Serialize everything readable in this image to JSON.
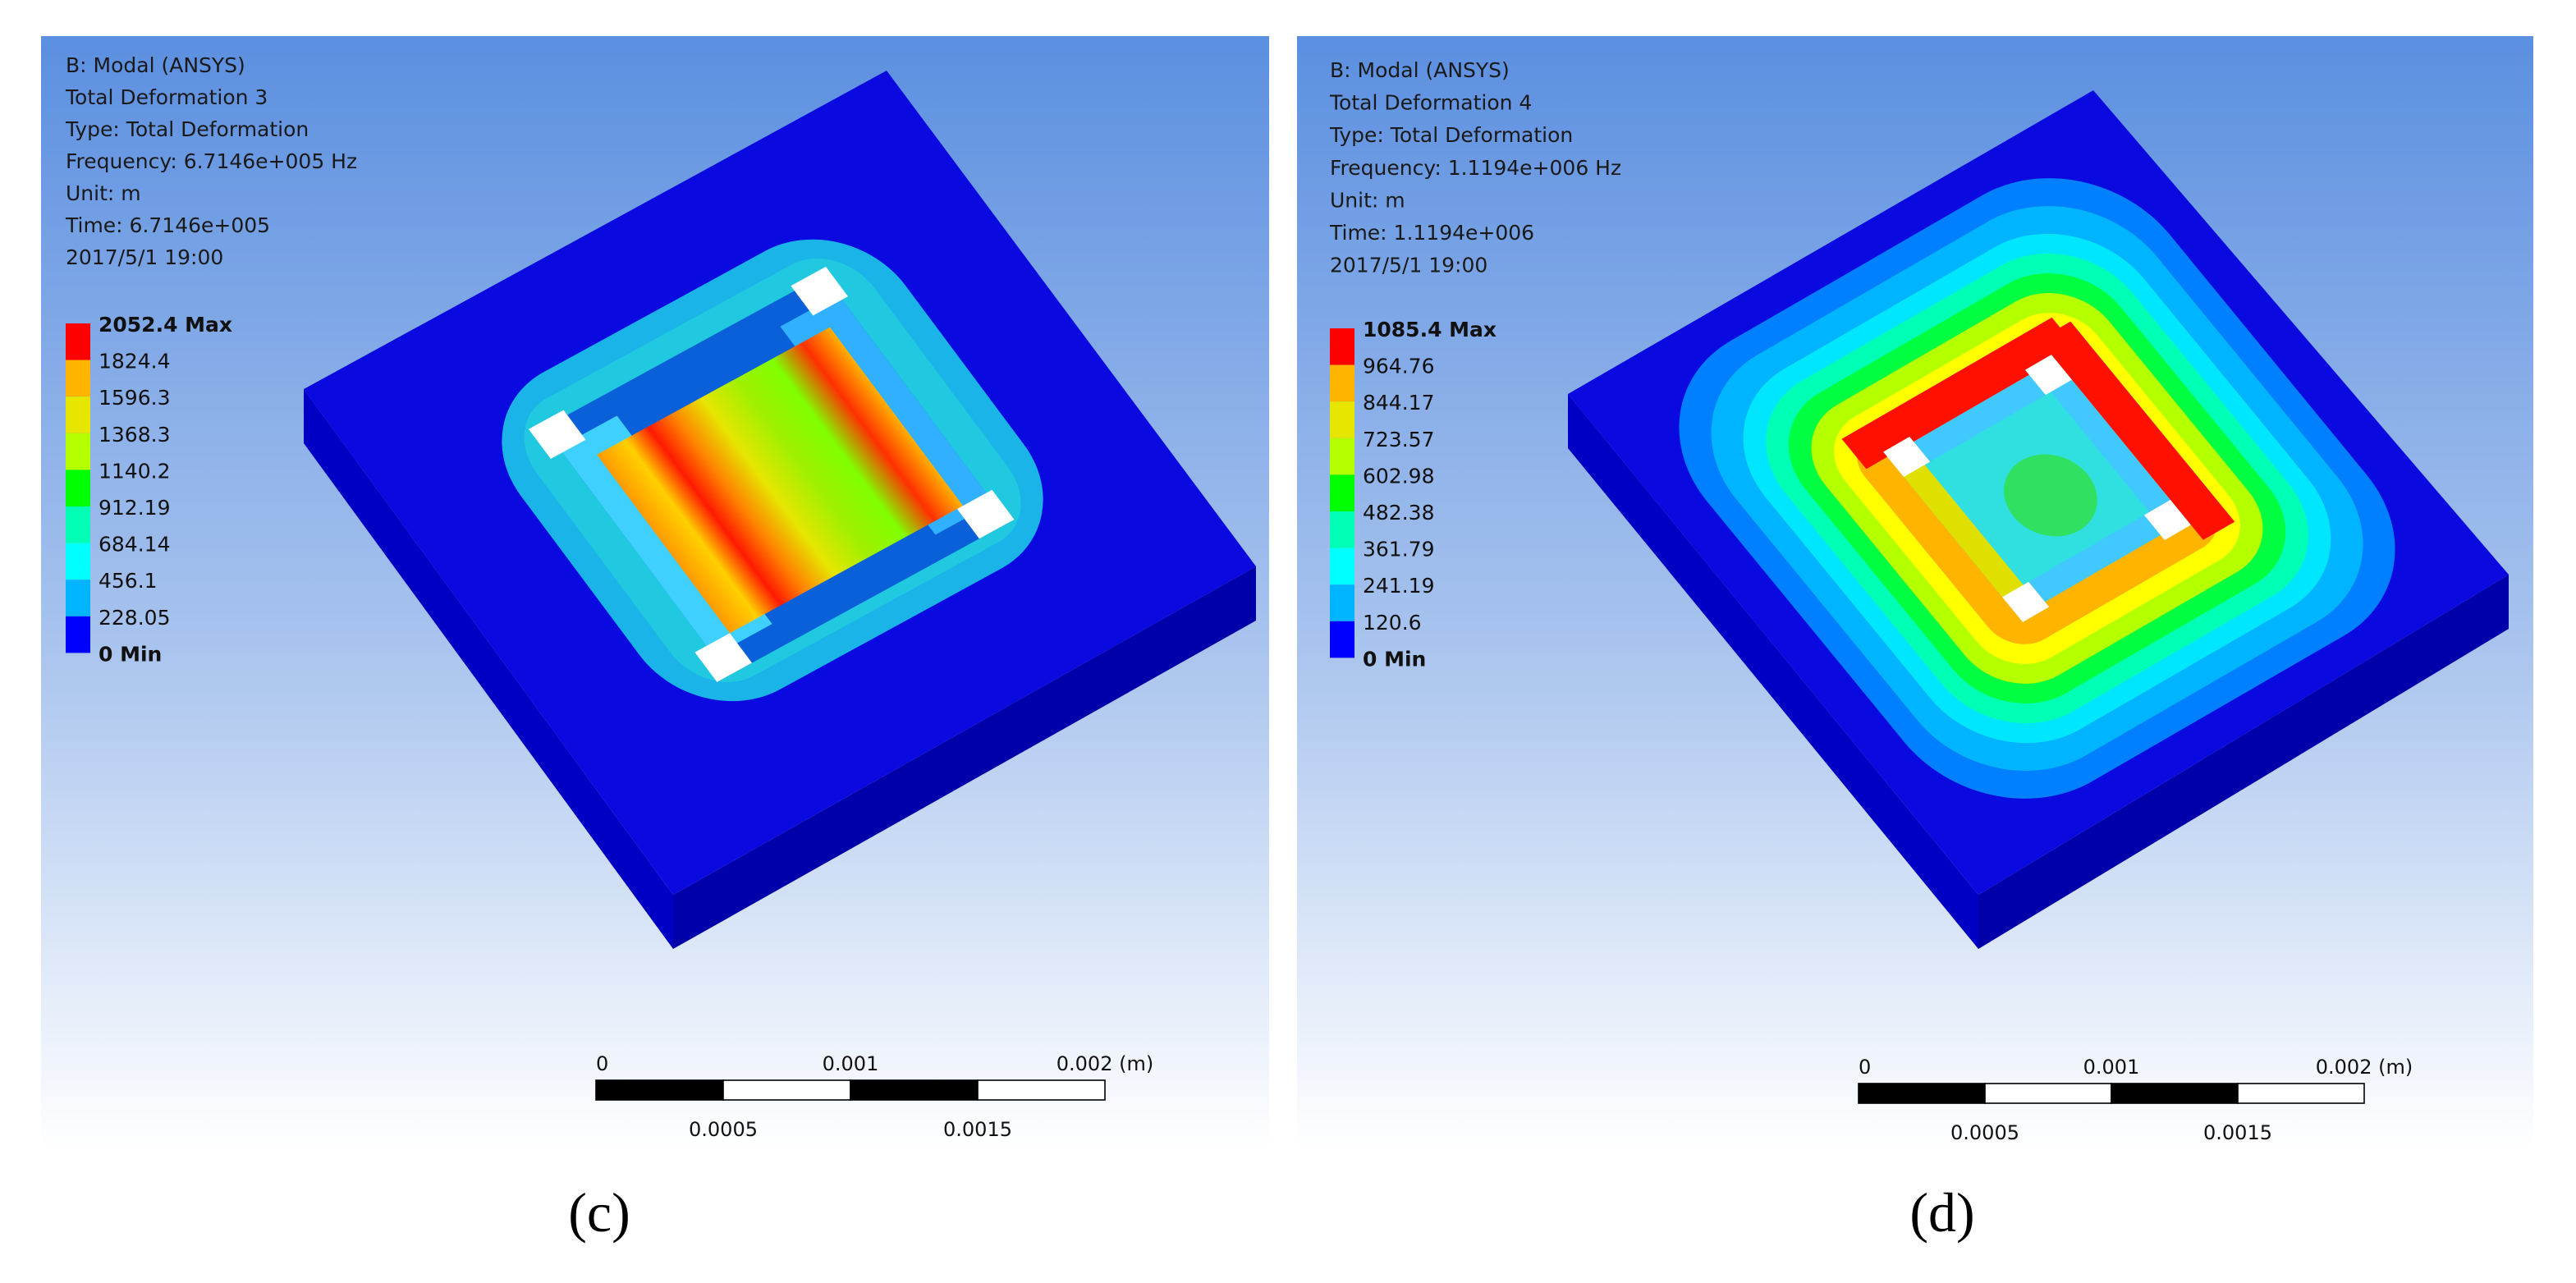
{
  "figure": {
    "panels": [
      {
        "header": [
          "B: Modal (ANSYS)",
          "Total Deformation 3",
          "Type: Total Deformation",
          "Frequency: 6.7146e+005 Hz",
          "Unit: m",
          "Time: 6.7146e+005",
          "2017/5/1 19:00"
        ],
        "legend": [
          "2052.4 Max",
          "1824.4",
          "1596.3",
          "1368.3",
          "1140.2",
          "912.19",
          "684.14",
          "456.1",
          "228.05",
          "0 Min"
        ],
        "scale": {
          "top": [
            "0",
            "0.001",
            "0.002 (m)"
          ],
          "bottom": [
            "0.0005",
            "0.0015"
          ]
        },
        "caption": "(c)"
      },
      {
        "header": [
          "B: Modal (ANSYS)",
          "Total Deformation 4",
          "Type: Total Deformation",
          "Frequency: 1.1194e+006 Hz",
          "Unit: m",
          "Time: 1.1194e+006",
          "2017/5/1 19:00"
        ],
        "legend": [
          "1085.4 Max",
          "964.76",
          "844.17",
          "723.57",
          "602.98",
          "482.38",
          "361.79",
          "241.19",
          "120.6",
          "0 Min"
        ],
        "scale": {
          "top": [
            "0",
            "0.001",
            "0.002 (m)"
          ],
          "bottom": [
            "0.0005",
            "0.0015"
          ]
        },
        "caption": "(d)"
      }
    ]
  }
}
